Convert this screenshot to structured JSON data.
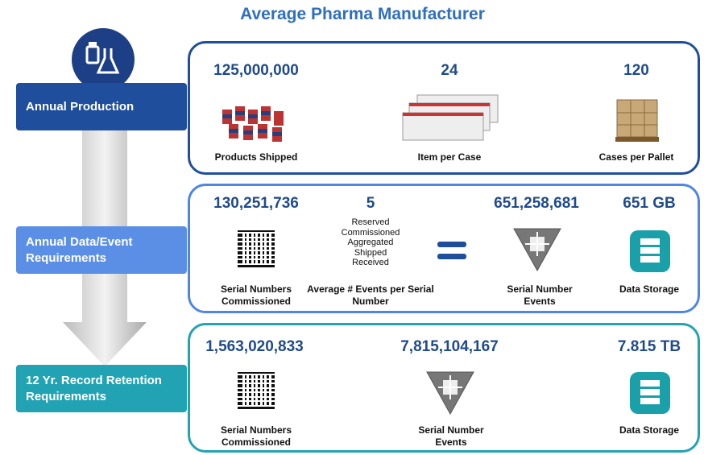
{
  "title": "Average Pharma Manufacturer",
  "rows": [
    {
      "label": "Annual Production",
      "items": [
        {
          "value": "125,000,000",
          "caption": "Products Shipped"
        },
        {
          "value": "24",
          "caption": "Item per Case"
        },
        {
          "value": "120",
          "caption": "Cases per Pallet"
        }
      ]
    },
    {
      "label": "Annual Data/Event Requirements",
      "items": [
        {
          "value": "130,251,736",
          "caption": "Serial Numbers Commissioned"
        },
        {
          "value": "5",
          "caption": "Average # Events per Serial Number"
        },
        {
          "value": "651,258,681",
          "caption": "Serial Number Events"
        },
        {
          "value": "651 GB",
          "caption": "Data Storage"
        }
      ]
    },
    {
      "label": "12 Yr. Record Retention Requirements",
      "items": [
        {
          "value": "1,563,020,833",
          "caption": "Serial Numbers Commissioned"
        },
        {
          "value": "7,815,104,167",
          "caption": "Serial Number Events"
        },
        {
          "value": "7.815 TB",
          "caption": "Data Storage"
        }
      ]
    }
  ],
  "event_types": [
    "Reserved",
    "Commissioned",
    "Aggregated",
    "Shipped",
    "Received"
  ]
}
